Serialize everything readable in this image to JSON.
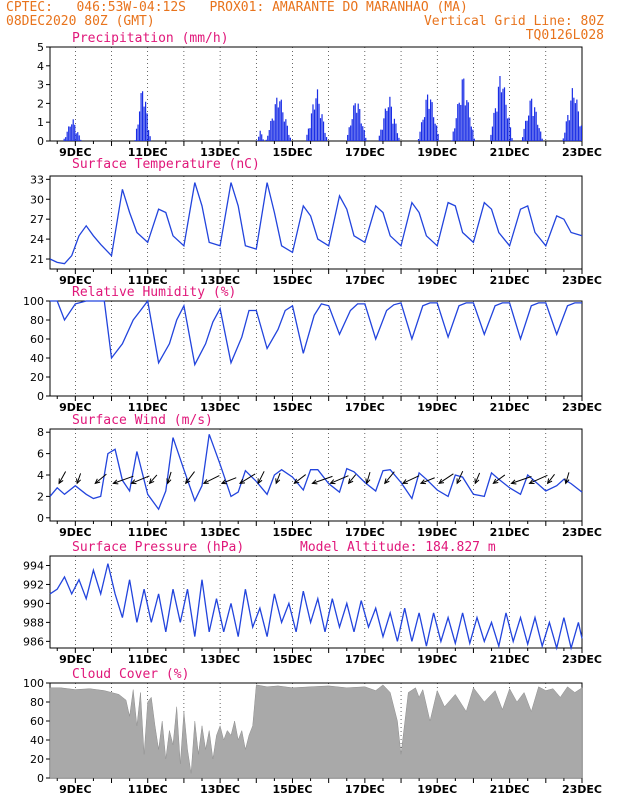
{
  "header": {
    "line1_left": "CPTEC:   046:53W-04:12S   PROX01: AMARANTE DO MARANHAO (MA)",
    "line2_left": "08DEC2020 80Z (GMT)",
    "line2_right": "Vertical Grid Line: 80Z",
    "line3_right": "TQ0126L028"
  },
  "colors": {
    "header": "#e8731c",
    "title": "#e0177a",
    "line": "#2244dd",
    "bar": "#1a2ee6",
    "cloud": "#a9a9a9"
  },
  "x_ticks": [
    "9DEC",
    "11DEC",
    "13DEC",
    "15DEC",
    "17DEC",
    "19DEC",
    "21DEC",
    "23DEC"
  ],
  "chart_data": [
    {
      "type": "bar",
      "title": "Precipitation (mm/h)",
      "ylim": [
        0,
        5
      ],
      "yticks": [
        0,
        1,
        2,
        3,
        4,
        5
      ],
      "xrange_days": [
        8.3,
        23
      ],
      "events": [
        {
          "center": 8.9,
          "width": 0.25,
          "peak": 1.3
        },
        {
          "center": 10.85,
          "width": 0.22,
          "peak": 3.3
        },
        {
          "center": 14.1,
          "width": 0.1,
          "peak": 0.6
        },
        {
          "center": 14.6,
          "width": 0.35,
          "peak": 2.8
        },
        {
          "center": 15.65,
          "width": 0.3,
          "peak": 3.0
        },
        {
          "center": 16.75,
          "width": 0.28,
          "peak": 2.6
        },
        {
          "center": 17.65,
          "width": 0.3,
          "peak": 2.6
        },
        {
          "center": 18.75,
          "width": 0.3,
          "peak": 3.0
        },
        {
          "center": 19.7,
          "width": 0.32,
          "peak": 3.7
        },
        {
          "center": 20.75,
          "width": 0.32,
          "peak": 4.0
        },
        {
          "center": 21.6,
          "width": 0.3,
          "peak": 2.6
        },
        {
          "center": 22.75,
          "width": 0.3,
          "peak": 3.2
        }
      ]
    },
    {
      "type": "line",
      "title": "Surface Temperature (nC)",
      "ylim": [
        19.5,
        33.5
      ],
      "yticks": [
        21,
        24,
        27,
        30,
        33
      ],
      "x": [
        8.3,
        8.5,
        8.7,
        8.9,
        9.1,
        9.3,
        9.5,
        9.7,
        10.0,
        10.3,
        10.5,
        10.7,
        11.0,
        11.3,
        11.5,
        11.7,
        12.0,
        12.3,
        12.5,
        12.7,
        13.0,
        13.3,
        13.5,
        13.7,
        14.0,
        14.3,
        14.5,
        14.7,
        15.0,
        15.3,
        15.5,
        15.7,
        16.0,
        16.3,
        16.5,
        16.7,
        17.0,
        17.3,
        17.5,
        17.7,
        18.0,
        18.3,
        18.5,
        18.7,
        19.0,
        19.3,
        19.5,
        19.7,
        20.0,
        20.3,
        20.5,
        20.7,
        21.0,
        21.3,
        21.5,
        21.7,
        22.0,
        22.3,
        22.5,
        22.7,
        23.0
      ],
      "y": [
        21,
        20.5,
        20.3,
        21.5,
        24.5,
        26,
        24.5,
        23.2,
        21.5,
        31.5,
        28,
        25,
        23.5,
        28.5,
        28,
        24.5,
        23,
        32.5,
        29,
        23.5,
        23,
        32.5,
        29,
        23,
        22.5,
        32.5,
        28,
        23,
        22,
        29,
        27.5,
        24,
        23,
        30.5,
        28.5,
        24.5,
        23.5,
        29,
        28,
        24.5,
        23,
        29.5,
        28,
        24.5,
        23,
        29.5,
        29,
        25,
        23.5,
        29.5,
        28.5,
        25,
        23,
        28.5,
        29,
        25,
        23,
        27.5,
        27,
        25,
        24.5
      ]
    },
    {
      "type": "line",
      "title": "Relative Humidity (%)",
      "ylim": [
        0,
        100
      ],
      "yticks": [
        0,
        20,
        40,
        60,
        80,
        100
      ],
      "x": [
        8.3,
        8.5,
        8.7,
        9.0,
        9.3,
        9.6,
        9.8,
        10.0,
        10.3,
        10.6,
        10.8,
        11.0,
        11.3,
        11.6,
        11.8,
        12.0,
        12.3,
        12.6,
        12.8,
        13.0,
        13.3,
        13.6,
        13.8,
        14.0,
        14.3,
        14.6,
        14.8,
        15.0,
        15.3,
        15.6,
        15.8,
        16.0,
        16.3,
        16.6,
        16.8,
        17.0,
        17.3,
        17.6,
        17.8,
        18.0,
        18.3,
        18.6,
        18.8,
        19.0,
        19.3,
        19.6,
        19.8,
        20.0,
        20.3,
        20.6,
        20.8,
        21.0,
        21.3,
        21.6,
        21.8,
        22.0,
        22.3,
        22.6,
        22.8,
        23.0
      ],
      "y": [
        100,
        100,
        80,
        97,
        100,
        100,
        100,
        40,
        55,
        80,
        90,
        100,
        35,
        55,
        80,
        95,
        33,
        55,
        78,
        92,
        35,
        62,
        90,
        90,
        50,
        70,
        90,
        95,
        45,
        85,
        97,
        95,
        65,
        90,
        97,
        97,
        60,
        90,
        96,
        98,
        60,
        95,
        98,
        98,
        62,
        95,
        98,
        98,
        65,
        95,
        98,
        98,
        60,
        95,
        98,
        98,
        65,
        95,
        98,
        98
      ]
    },
    {
      "type": "line",
      "title": "Surface Wind (m/s)",
      "ylim": [
        -0.3,
        8.3
      ],
      "yticks": [
        0,
        2,
        4,
        6,
        8
      ],
      "x": [
        8.3,
        8.5,
        8.7,
        9.0,
        9.3,
        9.5,
        9.7,
        9.9,
        10.1,
        10.3,
        10.5,
        10.7,
        11.0,
        11.3,
        11.5,
        11.7,
        12.0,
        12.3,
        12.5,
        12.7,
        13.0,
        13.3,
        13.5,
        13.7,
        14.0,
        14.3,
        14.5,
        14.7,
        15.0,
        15.3,
        15.5,
        15.7,
        16.0,
        16.3,
        16.5,
        16.7,
        17.0,
        17.3,
        17.5,
        17.7,
        18.0,
        18.3,
        18.5,
        18.7,
        19.0,
        19.3,
        19.5,
        19.7,
        20.0,
        20.3,
        20.5,
        20.7,
        21.0,
        21.3,
        21.5,
        21.7,
        22.0,
        22.3,
        22.5,
        22.7,
        23.0
      ],
      "y": [
        2,
        2.8,
        2.2,
        3,
        2.2,
        1.8,
        2,
        6,
        6.4,
        3.5,
        2.5,
        6.2,
        2.2,
        0.8,
        2.5,
        7.5,
        4.5,
        1.6,
        3,
        7.8,
        5,
        2,
        2.4,
        4.4,
        3.4,
        2.2,
        4,
        4.5,
        3.8,
        2.6,
        4.5,
        4.5,
        3.2,
        2.4,
        4.6,
        4.3,
        3.3,
        2.5,
        4.4,
        4.5,
        3.3,
        1.8,
        4.2,
        3.6,
        2.6,
        2,
        4,
        3.8,
        2.2,
        2,
        4.2,
        3.6,
        2.8,
        2.2,
        4,
        3.4,
        2.5,
        3,
        3.6,
        3.2,
        2.4
      ]
    },
    {
      "type": "line",
      "title": "Surface Pressure (hPa)",
      "subtitle": "Model Altitude: 184.827 m",
      "ylim": [
        985.3,
        995
      ],
      "yticks": [
        986,
        988,
        990,
        992,
        994
      ],
      "x": [
        8.3,
        8.5,
        8.7,
        8.9,
        9.1,
        9.3,
        9.5,
        9.7,
        9.9,
        10.1,
        10.3,
        10.5,
        10.7,
        10.9,
        11.1,
        11.3,
        11.5,
        11.7,
        11.9,
        12.1,
        12.3,
        12.5,
        12.7,
        12.9,
        13.1,
        13.3,
        13.5,
        13.7,
        13.9,
        14.1,
        14.3,
        14.5,
        14.7,
        14.9,
        15.1,
        15.3,
        15.5,
        15.7,
        15.9,
        16.1,
        16.3,
        16.5,
        16.7,
        16.9,
        17.1,
        17.3,
        17.5,
        17.7,
        17.9,
        18.1,
        18.3,
        18.5,
        18.7,
        18.9,
        19.1,
        19.3,
        19.5,
        19.7,
        19.9,
        20.1,
        20.3,
        20.5,
        20.7,
        20.9,
        21.1,
        21.3,
        21.5,
        21.7,
        21.9,
        22.1,
        22.3,
        22.5,
        22.7,
        22.9,
        23.0
      ],
      "y": [
        991,
        991.5,
        992.8,
        991,
        992.5,
        990.5,
        993.5,
        991,
        994.2,
        991,
        988.5,
        992.5,
        988,
        991.5,
        988,
        991,
        987,
        991.5,
        988,
        991.5,
        986.5,
        992.5,
        987,
        990.5,
        987,
        990,
        986.5,
        991.5,
        987.5,
        989.5,
        986.5,
        991,
        988,
        990,
        987,
        991.3,
        988,
        990.5,
        987,
        990.5,
        987.5,
        990,
        987,
        990.3,
        987.5,
        989.5,
        986.5,
        989,
        986,
        989.5,
        986,
        989,
        985.5,
        989,
        986,
        988.5,
        985.8,
        989,
        985.8,
        988.5,
        986,
        988,
        985.5,
        989,
        986,
        988.5,
        985.7,
        988.5,
        985.5,
        988,
        985.3,
        988.5,
        985.3,
        988,
        986.3
      ]
    },
    {
      "type": "area",
      "title": "Cloud Cover (%)",
      "ylim": [
        0,
        100
      ],
      "yticks": [
        0,
        20,
        40,
        60,
        80,
        100
      ],
      "x": [
        8.3,
        8.6,
        9.0,
        9.4,
        9.8,
        10.0,
        10.2,
        10.4,
        10.5,
        10.6,
        10.7,
        10.8,
        10.9,
        11.0,
        11.1,
        11.2,
        11.3,
        11.4,
        11.5,
        11.6,
        11.7,
        11.8,
        11.9,
        12.0,
        12.1,
        12.2,
        12.3,
        12.4,
        12.5,
        12.6,
        12.7,
        12.8,
        12.9,
        13.0,
        13.1,
        13.2,
        13.3,
        13.4,
        13.5,
        13.6,
        13.7,
        13.8,
        13.9,
        14.0,
        14.3,
        14.6,
        15.0,
        15.5,
        16.0,
        16.5,
        17.0,
        17.3,
        17.5,
        17.7,
        17.9,
        18.0,
        18.2,
        18.4,
        18.5,
        18.6,
        18.8,
        19.0,
        19.2,
        19.5,
        19.8,
        20.0,
        20.3,
        20.6,
        20.8,
        21.0,
        21.2,
        21.4,
        21.6,
        21.8,
        22.0,
        22.2,
        22.4,
        22.6,
        22.8,
        23.0
      ],
      "y": [
        95,
        95,
        93,
        94,
        92,
        90,
        88,
        82,
        65,
        93,
        55,
        90,
        25,
        80,
        85,
        55,
        30,
        60,
        20,
        50,
        35,
        75,
        15,
        70,
        30,
        5,
        60,
        25,
        55,
        30,
        50,
        20,
        45,
        55,
        40,
        50,
        45,
        60,
        40,
        50,
        30,
        45,
        55,
        98,
        96,
        97,
        95,
        96,
        97,
        95,
        96,
        92,
        98,
        90,
        60,
        25,
        90,
        95,
        85,
        93,
        60,
        92,
        75,
        88,
        70,
        95,
        80,
        92,
        72,
        94,
        80,
        90,
        70,
        96,
        92,
        94,
        85,
        96,
        90,
        95
      ]
    }
  ]
}
